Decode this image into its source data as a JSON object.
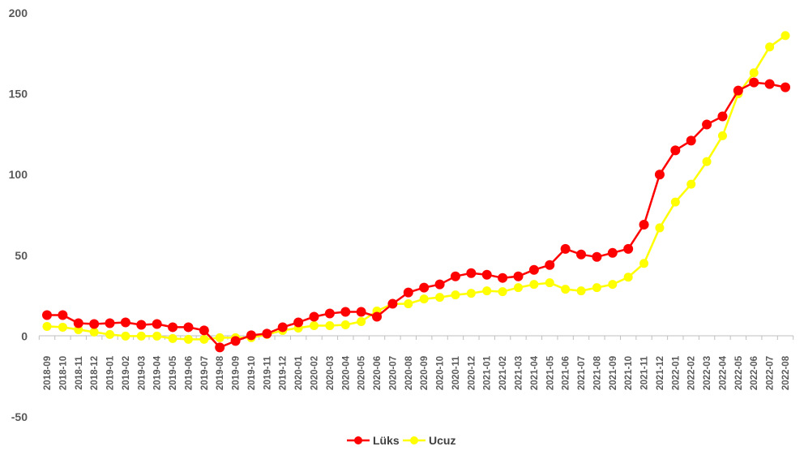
{
  "chart_data": {
    "type": "line",
    "title": "",
    "xlabel": "",
    "ylabel": "",
    "ylim": [
      -50,
      200
    ],
    "yticks": [
      -50,
      0,
      50,
      100,
      150,
      200
    ],
    "grid": false,
    "legend_position": "bottom",
    "categories": [
      "2018-09",
      "2018-10",
      "2018-11",
      "2018-12",
      "2019-01",
      "2019-02",
      "2019-03",
      "2019-04",
      "2019-05",
      "2019-06",
      "2019-07",
      "2019-08",
      "2019-09",
      "2019-10",
      "2019-11",
      "2019-12",
      "2020-01",
      "2020-02",
      "2020-03",
      "2020-04",
      "2020-05",
      "2020-06",
      "2020-07",
      "2020-08",
      "2020-09",
      "2020-10",
      "2020-11",
      "2020-12",
      "2021-01",
      "2021-02",
      "2021-03",
      "2021-04",
      "2021-05",
      "2021-06",
      "2021-07",
      "2021-08",
      "2021-09",
      "2021-10",
      "2021-11",
      "2021-12",
      "2022-01",
      "2022-02",
      "2022-03",
      "2022-04",
      "2022-05",
      "2022-06",
      "2022-07",
      "2022-08"
    ],
    "series": [
      {
        "name": "Lüks",
        "color": "#ff0000",
        "values": [
          13,
          13,
          8,
          7.5,
          8,
          8.5,
          7,
          7.5,
          5.5,
          5.5,
          3.5,
          -7,
          -3,
          0.5,
          1.5,
          5.5,
          8.5,
          12,
          14,
          15,
          15,
          12,
          20,
          27,
          30,
          32,
          37,
          39,
          38,
          36,
          37,
          41,
          44,
          54,
          50.5,
          49,
          51.5,
          54,
          69,
          100,
          115,
          121,
          131,
          136,
          152,
          157,
          156,
          154
        ]
      },
      {
        "name": "Ucuz",
        "color": "#ffff00",
        "values": [
          6,
          5.5,
          4,
          2.5,
          1,
          0,
          0,
          0,
          -1.5,
          -2,
          -2,
          -1,
          -1,
          -1,
          1,
          3.5,
          5,
          6.5,
          6.5,
          7,
          9,
          15.5,
          20,
          20,
          23,
          24,
          25.5,
          26.5,
          28,
          27.5,
          30,
          32,
          33,
          29,
          28,
          30,
          32,
          36.5,
          45,
          67,
          83,
          94,
          108,
          124,
          150,
          163,
          179,
          186
        ]
      }
    ]
  }
}
